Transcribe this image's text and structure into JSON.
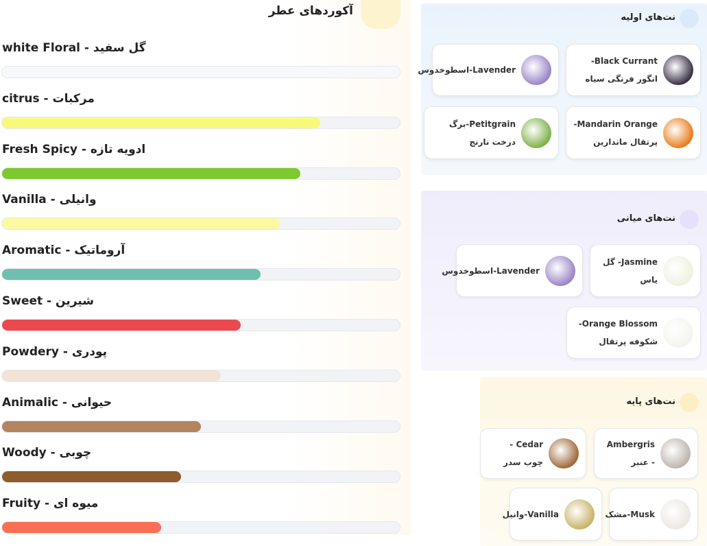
{
  "accords": {
    "title": "آکوردهای عطر",
    "items": [
      {
        "label": "white Floral - گل سفید",
        "value": 100,
        "color": "#f7f8fc"
      },
      {
        "label": "citrus - مرکبات",
        "value": 80,
        "color": "#f8f97a"
      },
      {
        "label": "Fresh Spicy - ادویه تازه",
        "value": 75,
        "color": "#7dc92e"
      },
      {
        "label": "Vanilla - وانیلی",
        "value": 70,
        "color": "#fafaa2"
      },
      {
        "label": "Aromatic - آروماتیک",
        "value": 65,
        "color": "#70bfae"
      },
      {
        "label": "Sweet - شیرین",
        "value": 60,
        "color": "#ea4a4e"
      },
      {
        "label": "Powdery - پودری",
        "value": 55,
        "color": "#f3e3d7"
      },
      {
        "label": "Animalic - حیوانی",
        "value": 50,
        "color": "#b3845e"
      },
      {
        "label": "Woody - چوبی",
        "value": 45,
        "color": "#8d5b2c"
      },
      {
        "label": "Fruity - میوه ای",
        "value": 40,
        "color": "#fb6f54"
      }
    ]
  },
  "sections": [
    {
      "title": "نت‌های اولیه",
      "notes": [
        {
          "name": "Black Currant-انگور فرنگی سیاه"
        },
        {
          "name": "Lavender-اسطوخدوس"
        },
        {
          "name": "Mandarin Orange-پرتقال ماندارین"
        },
        {
          "name": "Petitgrain-برگ درخت نارنج"
        }
      ]
    },
    {
      "title": "نت‌های میانی",
      "notes": [
        {
          "name": "Jasmine- گل یاس"
        },
        {
          "name": "Lavender-اسطوخدوس"
        },
        {
          "name": "Orange Blossom-شکوفه پرتقال"
        }
      ]
    },
    {
      "title": "نت‌های پایه",
      "notes": [
        {
          "name": "Ambergris - عنبر"
        },
        {
          "name": "Cedar - چوب سدر"
        },
        {
          "name": "Musk-مشک"
        },
        {
          "name": "Vanilla-وانیل"
        }
      ]
    }
  ]
}
